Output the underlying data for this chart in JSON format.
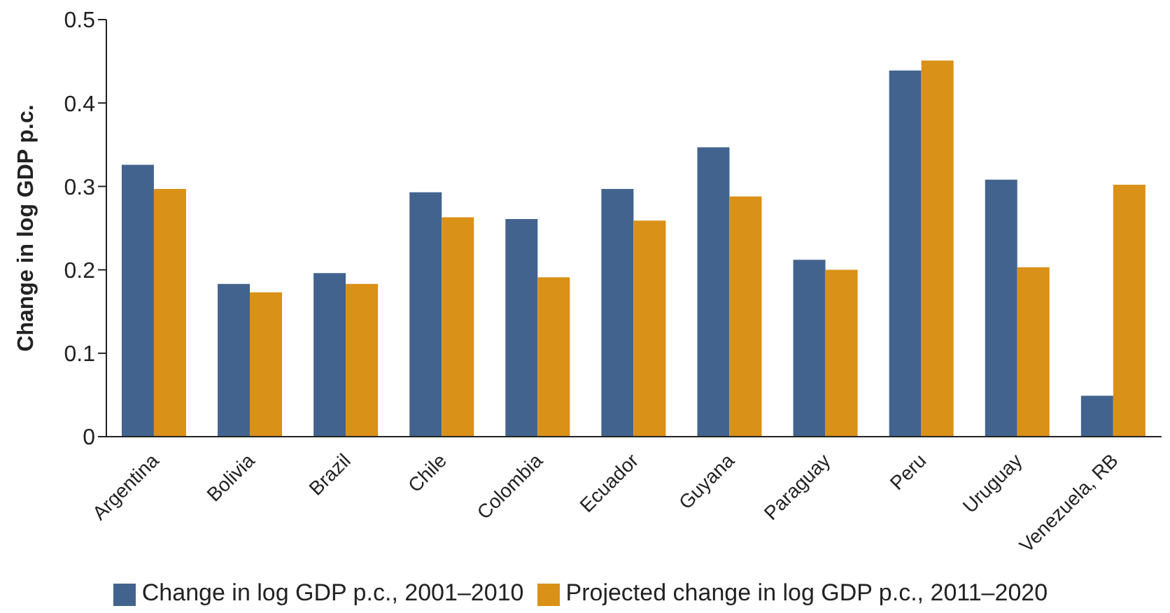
{
  "chart_data": {
    "type": "bar",
    "ylabel": "Change in log GDP p.c.",
    "categories": [
      "Argentina",
      "Bolivia",
      "Brazil",
      "Chile",
      "Colombia",
      "Ecuador",
      "Guyana",
      "Paraguay",
      "Peru",
      "Uruguay",
      "Venezuela, RB"
    ],
    "series": [
      {
        "name": "Change in log GDP p.c., 2001–2010",
        "color": "#43638f",
        "values": [
          0.326,
          0.183,
          0.196,
          0.293,
          0.261,
          0.297,
          0.347,
          0.212,
          0.439,
          0.308,
          0.049
        ]
      },
      {
        "name": "Projected change in log GDP p.c., 2011–2020",
        "color": "#d99117",
        "values": [
          0.297,
          0.173,
          0.183,
          0.263,
          0.191,
          0.259,
          0.288,
          0.2,
          0.451,
          0.203,
          0.302
        ]
      }
    ],
    "ylim": [
      0,
      0.5
    ],
    "yticks": [
      0,
      0.1,
      0.2,
      0.3,
      0.4,
      0.5
    ],
    "grid": false,
    "legend": "bottom"
  }
}
